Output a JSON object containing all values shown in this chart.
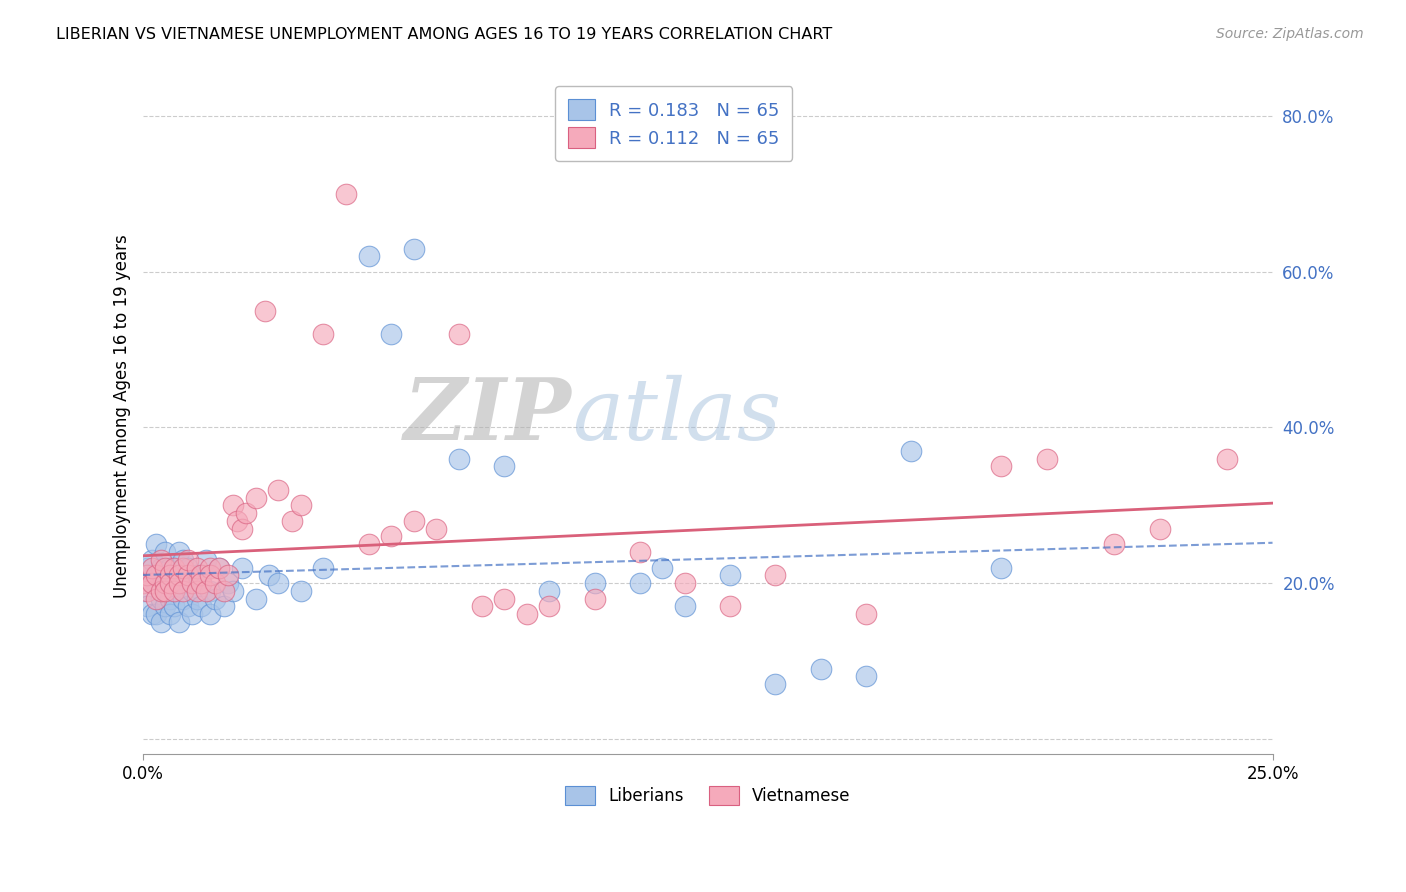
{
  "title": "LIBERIAN VS VIETNAMESE UNEMPLOYMENT AMONG AGES 16 TO 19 YEARS CORRELATION CHART",
  "source": "Source: ZipAtlas.com",
  "ylabel": "Unemployment Among Ages 16 to 19 years",
  "x_lim": [
    0.0,
    0.25
  ],
  "y_lim": [
    -0.02,
    0.85
  ],
  "liberian_R": "0.183",
  "liberian_N": "65",
  "vietnamese_R": "0.112",
  "vietnamese_N": "65",
  "liberian_color": "#a8c4e8",
  "vietnamese_color": "#f5aabb",
  "liberian_edge_color": "#5b8fd4",
  "vietnamese_edge_color": "#d96080",
  "liberian_trend_color": "#4472c4",
  "vietnamese_trend_color": "#d9607a",
  "legend_number_color": "#4472c4",
  "legend_text_color": "#333333",
  "y_tick_vals": [
    0.0,
    0.2,
    0.4,
    0.6,
    0.8
  ],
  "y_tick_labels": [
    "",
    "20.0%",
    "40.0%",
    "60.0%",
    "80.0%"
  ],
  "lib_x": [
    0.0,
    0.0,
    0.001,
    0.001,
    0.002,
    0.002,
    0.002,
    0.003,
    0.003,
    0.003,
    0.004,
    0.004,
    0.004,
    0.005,
    0.005,
    0.005,
    0.006,
    0.006,
    0.006,
    0.007,
    0.007,
    0.007,
    0.008,
    0.008,
    0.009,
    0.009,
    0.009,
    0.01,
    0.01,
    0.011,
    0.011,
    0.012,
    0.012,
    0.013,
    0.013,
    0.014,
    0.015,
    0.015,
    0.016,
    0.017,
    0.018,
    0.019,
    0.02,
    0.022,
    0.025,
    0.028,
    0.03,
    0.035,
    0.04,
    0.05,
    0.055,
    0.06,
    0.07,
    0.08,
    0.09,
    0.1,
    0.11,
    0.115,
    0.12,
    0.13,
    0.14,
    0.15,
    0.16,
    0.17,
    0.19
  ],
  "lib_y": [
    0.19,
    0.21,
    0.17,
    0.22,
    0.16,
    0.2,
    0.23,
    0.16,
    0.2,
    0.25,
    0.15,
    0.18,
    0.22,
    0.17,
    0.21,
    0.24,
    0.18,
    0.22,
    0.16,
    0.19,
    0.17,
    0.22,
    0.15,
    0.24,
    0.18,
    0.2,
    0.23,
    0.17,
    0.22,
    0.16,
    0.19,
    0.18,
    0.21,
    0.2,
    0.17,
    0.23,
    0.16,
    0.19,
    0.18,
    0.22,
    0.17,
    0.2,
    0.19,
    0.22,
    0.18,
    0.21,
    0.2,
    0.19,
    0.22,
    0.62,
    0.52,
    0.63,
    0.36,
    0.35,
    0.19,
    0.2,
    0.2,
    0.22,
    0.17,
    0.21,
    0.07,
    0.09,
    0.08,
    0.37,
    0.22
  ],
  "viet_x": [
    0.0,
    0.001,
    0.001,
    0.002,
    0.002,
    0.003,
    0.003,
    0.004,
    0.004,
    0.005,
    0.005,
    0.005,
    0.006,
    0.006,
    0.007,
    0.007,
    0.008,
    0.008,
    0.009,
    0.009,
    0.01,
    0.01,
    0.011,
    0.012,
    0.012,
    0.013,
    0.013,
    0.014,
    0.015,
    0.015,
    0.016,
    0.017,
    0.018,
    0.019,
    0.02,
    0.021,
    0.022,
    0.023,
    0.025,
    0.027,
    0.03,
    0.033,
    0.035,
    0.04,
    0.045,
    0.05,
    0.055,
    0.06,
    0.065,
    0.07,
    0.075,
    0.08,
    0.085,
    0.09,
    0.1,
    0.11,
    0.12,
    0.13,
    0.14,
    0.16,
    0.19,
    0.2,
    0.215,
    0.225,
    0.24
  ],
  "viet_y": [
    0.2,
    0.19,
    0.21,
    0.2,
    0.22,
    0.18,
    0.21,
    0.19,
    0.23,
    0.2,
    0.22,
    0.19,
    0.21,
    0.2,
    0.22,
    0.19,
    0.21,
    0.2,
    0.22,
    0.19,
    0.21,
    0.23,
    0.2,
    0.22,
    0.19,
    0.21,
    0.2,
    0.19,
    0.22,
    0.21,
    0.2,
    0.22,
    0.19,
    0.21,
    0.3,
    0.28,
    0.27,
    0.29,
    0.31,
    0.55,
    0.32,
    0.28,
    0.3,
    0.52,
    0.7,
    0.25,
    0.26,
    0.28,
    0.27,
    0.52,
    0.17,
    0.18,
    0.16,
    0.17,
    0.18,
    0.24,
    0.2,
    0.17,
    0.21,
    0.16,
    0.35,
    0.36,
    0.25,
    0.27,
    0.36
  ]
}
